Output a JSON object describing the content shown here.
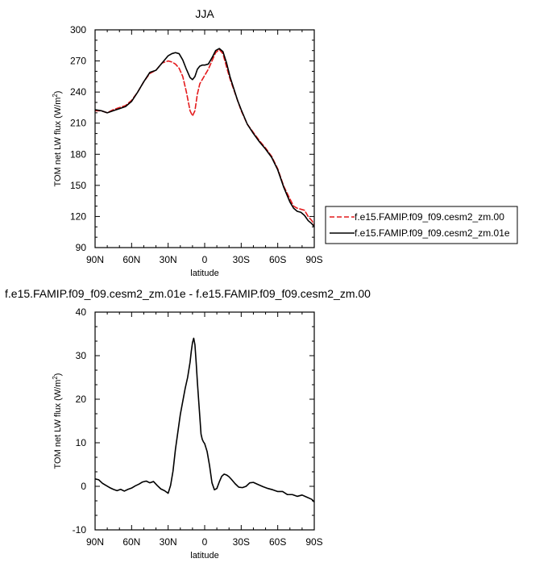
{
  "chart_data": [
    {
      "type": "line",
      "title": "JJA",
      "xlabel": "latitude",
      "ylabel": "TOM net LW flux (W/m",
      "ylabel_sup": "2",
      "ylabel_suffix": ")",
      "xlim": [
        90,
        -90
      ],
      "ylim": [
        90,
        300
      ],
      "xticks": [
        90,
        60,
        30,
        0,
        -30,
        -60,
        -90
      ],
      "xtick_labels": [
        "90N",
        "60N",
        "30N",
        "0",
        "30S",
        "60S",
        "90S"
      ],
      "yticks": [
        90,
        120,
        150,
        180,
        210,
        240,
        270,
        300
      ],
      "ytick_labels": [
        "90",
        "120",
        "150",
        "180",
        "210",
        "240",
        "270",
        "300"
      ],
      "grid": false,
      "legend_position": "right",
      "series": [
        {
          "name": "f.e15.FAMIP.f09_f09.cesm2_zm.00",
          "color": "#e41a1c",
          "dash": "dashed",
          "x": [
            90,
            85,
            80,
            75,
            70,
            65,
            60,
            55,
            50,
            45,
            40,
            35,
            30,
            27,
            24,
            21,
            18,
            15,
            12,
            10,
            8,
            6,
            4,
            2,
            0,
            -3,
            -6,
            -9,
            -12,
            -15,
            -18,
            -21,
            -24,
            -27,
            -30,
            -35,
            -40,
            -45,
            -50,
            -55,
            -60,
            -65,
            -70,
            -73,
            -76,
            -79,
            -82,
            -85,
            -88,
            -90
          ],
          "y": [
            222,
            222,
            220,
            223,
            225,
            227,
            232,
            240,
            250,
            258,
            261,
            268,
            270,
            269,
            267,
            263,
            255,
            240,
            222,
            217,
            222,
            238,
            248,
            252,
            256,
            262,
            270,
            278,
            281,
            277,
            264,
            252,
            242,
            232,
            222,
            209,
            201,
            193,
            186,
            178,
            166,
            149,
            137,
            130,
            128,
            127,
            126,
            120,
            116,
            112
          ]
        },
        {
          "name": "f.e15.FAMIP.f09_f09.cesm2_zm.01e",
          "color": "#000000",
          "dash": "solid",
          "x": [
            90,
            85,
            80,
            75,
            70,
            65,
            60,
            55,
            50,
            45,
            40,
            35,
            30,
            27,
            24,
            21,
            18,
            15,
            12,
            10,
            8,
            6,
            4,
            2,
            0,
            -3,
            -6,
            -9,
            -12,
            -15,
            -18,
            -21,
            -24,
            -27,
            -30,
            -35,
            -40,
            -45,
            -50,
            -55,
            -60,
            -65,
            -70,
            -73,
            -76,
            -79,
            -82,
            -85,
            -88,
            -90
          ],
          "y": [
            223,
            222,
            220,
            222,
            224,
            226,
            231,
            240,
            250,
            259,
            261,
            268,
            275,
            277,
            278,
            277,
            271,
            262,
            254,
            252,
            255,
            262,
            265,
            266,
            266,
            267,
            273,
            280,
            282,
            279,
            268,
            254,
            243,
            232,
            223,
            209,
            200,
            192,
            185,
            177,
            165,
            148,
            134,
            128,
            125,
            124,
            121,
            116,
            113,
            110
          ]
        }
      ]
    },
    {
      "type": "line",
      "title": "f.e15.FAMIP.f09_f09.cesm2_zm.01e - f.e15.FAMIP.f09_f09.cesm2_zm.00",
      "xlabel": "latitude",
      "ylabel": "TOM net LW flux (W/m",
      "ylabel_sup": "2",
      "ylabel_suffix": ")",
      "xlim": [
        90,
        -90
      ],
      "ylim": [
        -10,
        40
      ],
      "xticks": [
        90,
        60,
        30,
        0,
        -30,
        -60,
        -90
      ],
      "xtick_labels": [
        "90N",
        "60N",
        "30N",
        "0",
        "30S",
        "60S",
        "90S"
      ],
      "yticks": [
        -10,
        0,
        10,
        20,
        30,
        40
      ],
      "ytick_labels": [
        "-10",
        "0",
        "10",
        "20",
        "30",
        "40"
      ],
      "grid": false,
      "series": [
        {
          "color": "#000000",
          "dash": "solid",
          "x": [
            90,
            87,
            84,
            81,
            78,
            75,
            72,
            69,
            66,
            63,
            60,
            57,
            54,
            51,
            48,
            45,
            42,
            39,
            36,
            33,
            30,
            28,
            26,
            24,
            22,
            20,
            18,
            16,
            14,
            12,
            11,
            10,
            9,
            8,
            7,
            6,
            5,
            4,
            3,
            2,
            1,
            0,
            -2,
            -4,
            -6,
            -8,
            -10,
            -12,
            -14,
            -16,
            -18,
            -20,
            -22,
            -25,
            -28,
            -31,
            -34,
            -37,
            -40,
            -44,
            -48,
            -52,
            -56,
            -60,
            -64,
            -68,
            -72,
            -76,
            -80,
            -84,
            -88,
            -90
          ],
          "y": [
            1.7,
            1.5,
            0.7,
            0.2,
            -0.3,
            -0.7,
            -1.0,
            -0.7,
            -1.1,
            -0.7,
            -0.4,
            0.1,
            0.5,
            1.0,
            1.2,
            0.8,
            1.1,
            0.2,
            -0.6,
            -1.0,
            -1.6,
            0.2,
            3.5,
            8.5,
            12.5,
            16.5,
            19.5,
            22.5,
            25.0,
            28.5,
            31.0,
            33.0,
            34.0,
            32.5,
            28.5,
            24.0,
            20.0,
            16.0,
            12.0,
            10.8,
            10.2,
            9.8,
            8.0,
            4.8,
            0.8,
            -0.8,
            -0.5,
            1.0,
            2.3,
            2.8,
            2.6,
            2.2,
            1.6,
            0.6,
            -0.2,
            -0.3,
            0.0,
            0.8,
            0.9,
            0.4,
            -0.1,
            -0.5,
            -0.8,
            -1.2,
            -1.2,
            -1.9,
            -1.9,
            -2.3,
            -2.0,
            -2.5,
            -3.0,
            -3.6
          ]
        }
      ]
    }
  ]
}
